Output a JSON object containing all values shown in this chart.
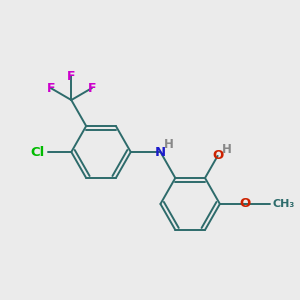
{
  "bg_color": "#ebebeb",
  "bond_color": "#2d6b6b",
  "atom_colors": {
    "Cl": "#00bb00",
    "F": "#cc00cc",
    "N": "#1c1ccc",
    "O": "#cc2200",
    "H": "#888888"
  },
  "figsize": [
    3.0,
    3.0
  ],
  "dpi": 100
}
